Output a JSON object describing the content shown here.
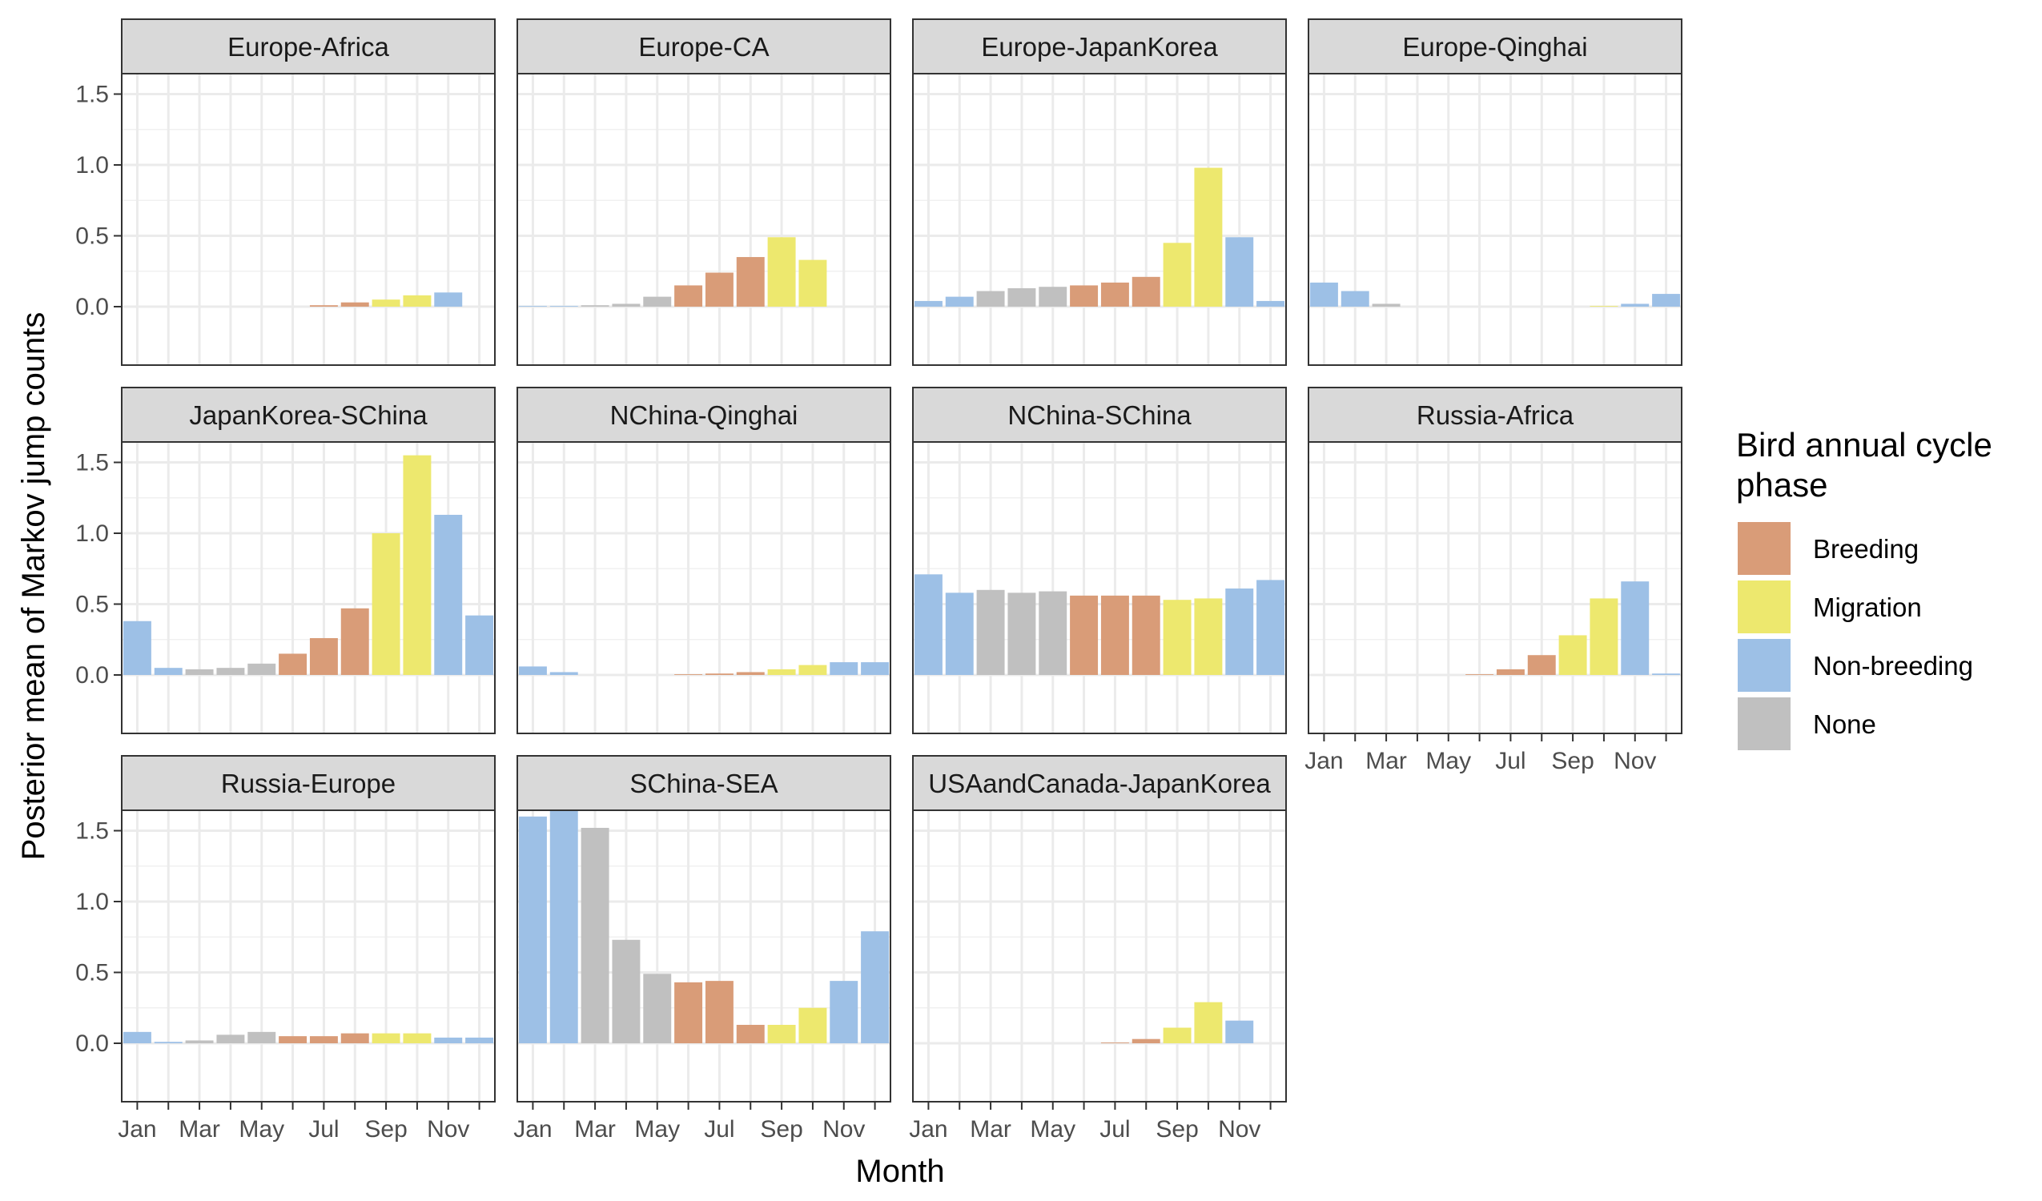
{
  "chart_data": {
    "type": "bar",
    "xlabel": "Month",
    "ylabel": "Posterior mean of Markov jump counts",
    "ylim": [
      0,
      2.0
    ],
    "y_ticks": [
      "0.0",
      "0.5",
      "1.0",
      "1.5"
    ],
    "months": [
      "Jan",
      "Feb",
      "Mar",
      "Apr",
      "May",
      "Jun",
      "Jul",
      "Aug",
      "Sep",
      "Oct",
      "Nov",
      "Dec"
    ],
    "x_tick_labels": [
      "Jan",
      "Mar",
      "May",
      "Jul",
      "Sep",
      "Nov"
    ],
    "grid": true,
    "legend": {
      "title": "Bird annual cycle phase",
      "placement": "right",
      "entries": [
        {
          "key": "B",
          "label": "Breeding",
          "color": "#D99C78"
        },
        {
          "key": "M",
          "label": "Migration",
          "color": "#EDE86E"
        },
        {
          "key": "N",
          "label": "Non-breeding",
          "color": "#9DC0E6"
        },
        {
          "key": "O",
          "label": "None",
          "color": "#C0C0C0"
        }
      ]
    },
    "panels": [
      {
        "title": "Europe-Africa",
        "values": [
          0,
          0,
          0,
          0,
          0,
          0,
          0.01,
          0.03,
          0.05,
          0.08,
          0.1,
          0
        ],
        "phases": [
          "N",
          "N",
          "O",
          "O",
          "O",
          "B",
          "B",
          "B",
          "M",
          "M",
          "N",
          "N"
        ]
      },
      {
        "title": "Europe-CA",
        "values": [
          0.005,
          0.005,
          0.01,
          0.02,
          0.07,
          0.15,
          0.24,
          0.35,
          0.49,
          0.33,
          0,
          0
        ],
        "phases": [
          "N",
          "N",
          "O",
          "O",
          "O",
          "B",
          "B",
          "B",
          "M",
          "M",
          "N",
          "N"
        ]
      },
      {
        "title": "Europe-JapanKorea",
        "values": [
          0.04,
          0.07,
          0.11,
          0.13,
          0.14,
          0.15,
          0.17,
          0.21,
          0.45,
          0.98,
          0.49,
          0.04
        ],
        "phases": [
          "N",
          "N",
          "O",
          "O",
          "O",
          "B",
          "B",
          "B",
          "M",
          "M",
          "N",
          "N"
        ]
      },
      {
        "title": "Europe-Qinghai",
        "values": [
          0.17,
          0.11,
          0.02,
          0,
          0,
          0,
          0,
          0,
          0,
          0.005,
          0.02,
          0.09
        ],
        "phases": [
          "N",
          "N",
          "O",
          "O",
          "O",
          "B",
          "B",
          "B",
          "M",
          "M",
          "N",
          "N"
        ]
      },
      {
        "title": "JapanKorea-SChina",
        "values": [
          0.38,
          0.05,
          0.04,
          0.05,
          0.08,
          0.15,
          0.26,
          0.47,
          1.0,
          1.55,
          1.13,
          0.42
        ],
        "phases": [
          "N",
          "N",
          "O",
          "O",
          "O",
          "B",
          "B",
          "B",
          "M",
          "M",
          "N",
          "N"
        ]
      },
      {
        "title": "NChina-Qinghai",
        "values": [
          0.06,
          0.02,
          0,
          0,
          0,
          0.005,
          0.01,
          0.02,
          0.04,
          0.07,
          0.09,
          0.09
        ],
        "phases": [
          "N",
          "N",
          "O",
          "O",
          "O",
          "B",
          "B",
          "B",
          "M",
          "M",
          "N",
          "N"
        ]
      },
      {
        "title": "NChina-SChina",
        "values": [
          0.71,
          0.58,
          0.6,
          0.58,
          0.59,
          0.56,
          0.56,
          0.56,
          0.53,
          0.54,
          0.61,
          0.67
        ],
        "phases": [
          "N",
          "N",
          "O",
          "O",
          "O",
          "B",
          "B",
          "B",
          "M",
          "M",
          "N",
          "N"
        ]
      },
      {
        "title": "Russia-Africa",
        "values": [
          0,
          0,
          0,
          0,
          0,
          0.005,
          0.04,
          0.14,
          0.28,
          0.54,
          0.66,
          0.01
        ],
        "phases": [
          "N",
          "N",
          "O",
          "O",
          "O",
          "B",
          "B",
          "B",
          "M",
          "M",
          "N",
          "N"
        ]
      },
      {
        "title": "Russia-Europe",
        "values": [
          0.08,
          0.01,
          0.02,
          0.06,
          0.08,
          0.05,
          0.05,
          0.07,
          0.07,
          0.07,
          0.04,
          0.04
        ],
        "phases": [
          "N",
          "N",
          "O",
          "O",
          "O",
          "B",
          "B",
          "B",
          "M",
          "M",
          "N",
          "N"
        ]
      },
      {
        "title": "SChina-SEA",
        "values": [
          1.6,
          1.89,
          1.52,
          0.73,
          0.49,
          0.43,
          0.44,
          0.13,
          0.13,
          0.25,
          0.44,
          0.79
        ],
        "phases": [
          "N",
          "N",
          "O",
          "O",
          "O",
          "B",
          "B",
          "B",
          "M",
          "M",
          "N",
          "N"
        ]
      },
      {
        "title": "USAandCanada-JapanKorea",
        "values": [
          0,
          0,
          0,
          0,
          0,
          0,
          0.005,
          0.03,
          0.11,
          0.29,
          0.16,
          0
        ],
        "phases": [
          "N",
          "N",
          "O",
          "O",
          "O",
          "B",
          "B",
          "B",
          "M",
          "M",
          "N",
          "N"
        ]
      }
    ]
  }
}
